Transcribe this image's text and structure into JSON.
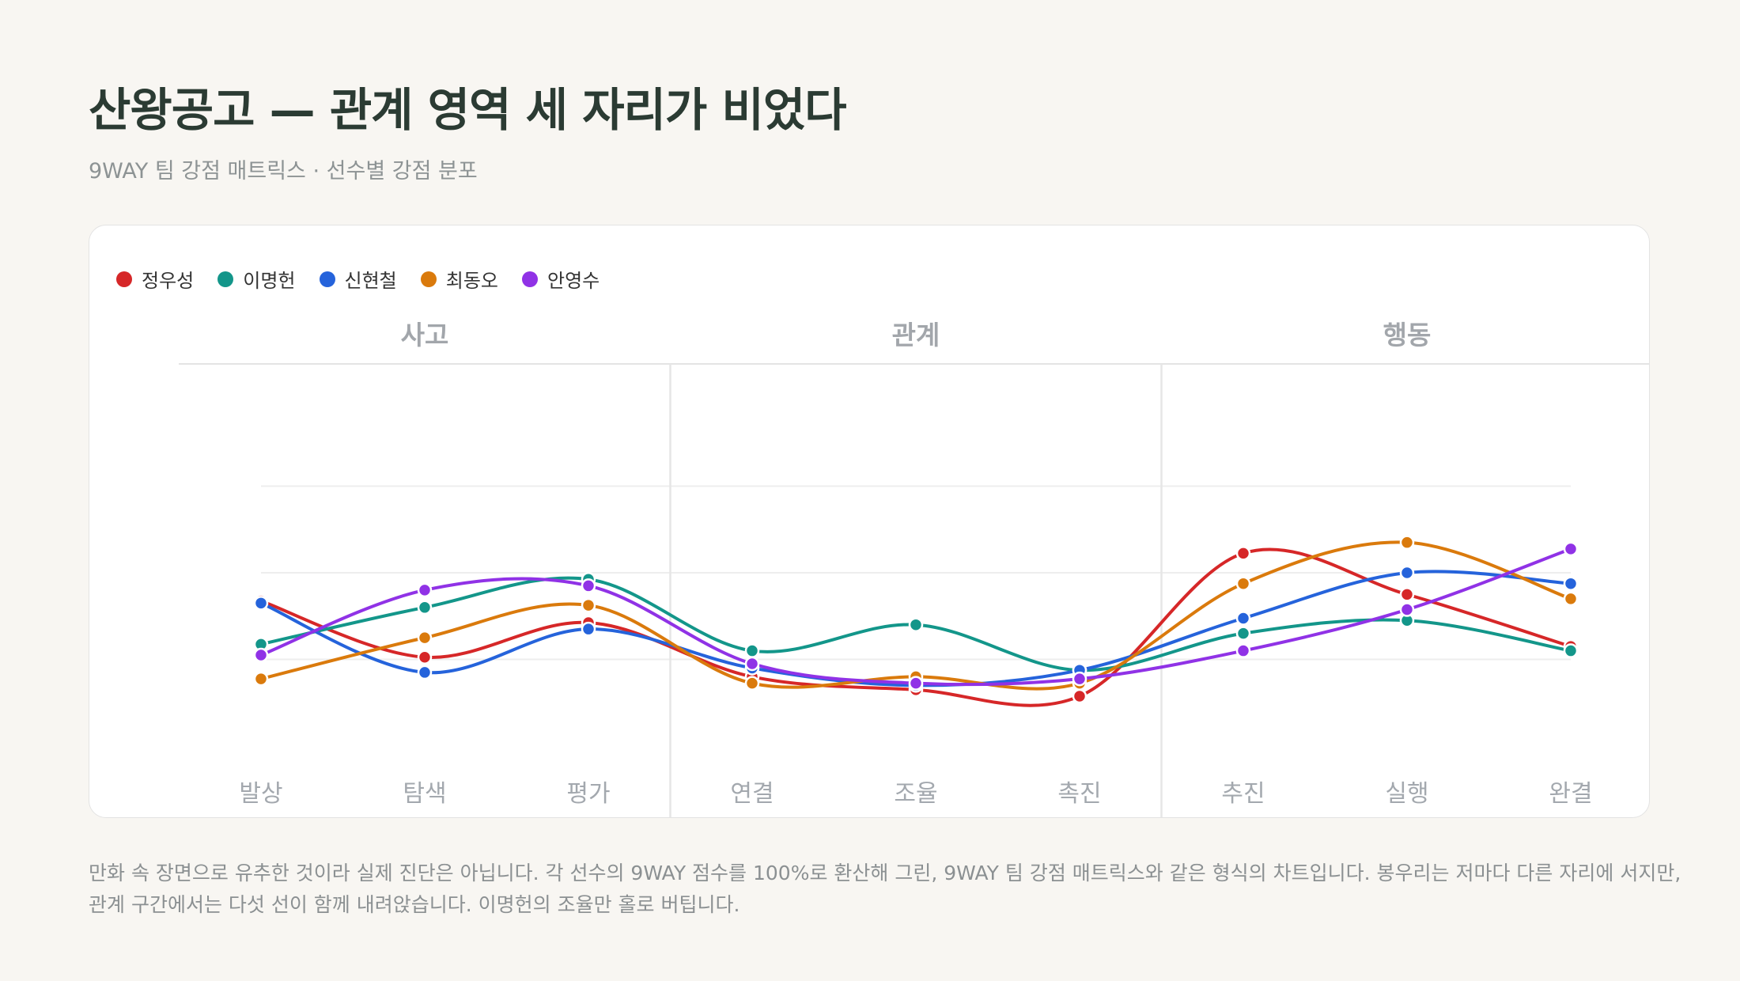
{
  "header": {
    "title": "산왕공고 — 관계 영역 세 자리가 비었다",
    "subtitle": "9WAY 팀 강점 매트릭스 · 선수별 강점 분포"
  },
  "footnote": {
    "line1": "만화 속 장면으로 유추한 것이라 실제 진단은 아닙니다. 각 선수의 9WAY 점수를 100%로 환산해 그린, 9WAY 팀 강점 매트릭스와 같은 형식의 차트입니다. 봉우리는 저마다 다른 자리에 서지만,",
    "line2": "관계 구간에서는 다섯 선이 함께 내려앉습니다. 이명헌의 조율만 홀로 버팁니다."
  },
  "chart_data": {
    "type": "line",
    "curve": "smooth",
    "groups": [
      {
        "label": "사고",
        "categories": [
          "발상",
          "탐색",
          "평가"
        ]
      },
      {
        "label": "관계",
        "categories": [
          "연결",
          "조율",
          "촉진"
        ]
      },
      {
        "label": "행동",
        "categories": [
          "추진",
          "실행",
          "완결"
        ]
      }
    ],
    "categories": [
      "발상",
      "탐색",
      "평가",
      "연결",
      "조율",
      "촉진",
      "추진",
      "실행",
      "완결"
    ],
    "ylim": [
      3,
      17
    ],
    "gridlines": [
      8,
      12,
      16
    ],
    "grid": true,
    "legend_position": "top-left",
    "series": [
      {
        "name": "정우성",
        "color": "#d62728",
        "values": [
          10.7,
          8.1,
          9.7,
          7.2,
          6.6,
          6.3,
          12.9,
          11.0,
          8.6
        ]
      },
      {
        "name": "이명헌",
        "color": "#13968a",
        "values": [
          8.7,
          10.4,
          11.7,
          8.4,
          9.6,
          7.5,
          9.2,
          9.8,
          8.4
        ]
      },
      {
        "name": "신현철",
        "color": "#2563db",
        "values": [
          10.6,
          7.4,
          9.4,
          7.6,
          6.8,
          7.5,
          9.9,
          12.0,
          11.5
        ]
      },
      {
        "name": "최동오",
        "color": "#da7a0c",
        "values": [
          7.1,
          9.0,
          10.5,
          6.9,
          7.2,
          6.9,
          11.5,
          13.4,
          10.8
        ]
      },
      {
        "name": "안영수",
        "color": "#9032e6",
        "values": [
          8.2,
          11.2,
          11.4,
          7.8,
          6.9,
          7.1,
          8.4,
          10.3,
          13.1
        ]
      }
    ]
  }
}
